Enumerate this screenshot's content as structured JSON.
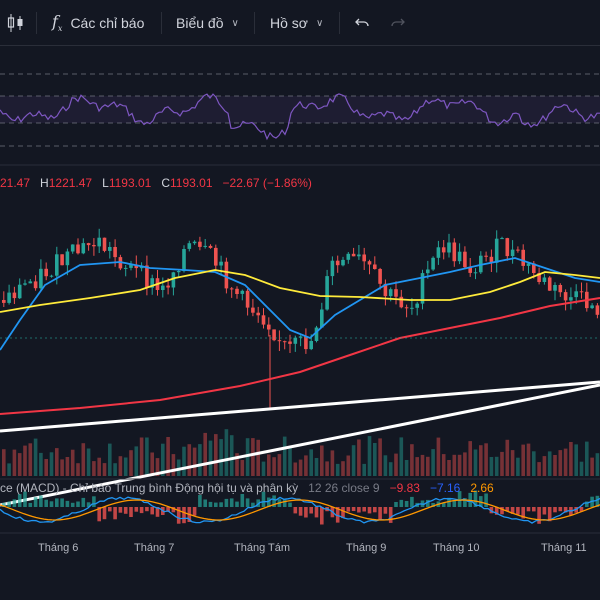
{
  "toolbar": {
    "indicators_label": "Các chỉ báo",
    "interval_label": "Biểu đồ",
    "profile_label": "Hồ sơ"
  },
  "ohlc": {
    "o_label": "21.47",
    "h_key": "H",
    "h_val": "1221.47",
    "l_key": "L",
    "l_val": "1193.01",
    "c_key": "C",
    "c_val": "1193.01",
    "change": "−22.67 (−1.86%)"
  },
  "macd": {
    "title": "ce (MACD) - Chỉ báo Trung bình Động hội tụ và phân kỳ",
    "params": "12 26 close 9",
    "hist": "−9.83",
    "macd": "−7.16",
    "signal": "2.66"
  },
  "time_axis": [
    "Tháng 6",
    "Tháng 7",
    "Tháng Tám",
    "Tháng 9",
    "Tháng 10",
    "Tháng 11"
  ],
  "colors": {
    "background": "#131722",
    "up": "#26a69a",
    "down": "#ef5350",
    "ma_fast": "#2196f3",
    "ma_mid": "#ffeb3b",
    "ma_slow": "#f23645",
    "rsi": "#7e57c2",
    "trendline": "#ffffff"
  },
  "icons": [
    "candlestick-icon",
    "fx-icon",
    "undo-icon",
    "redo-icon"
  ]
}
